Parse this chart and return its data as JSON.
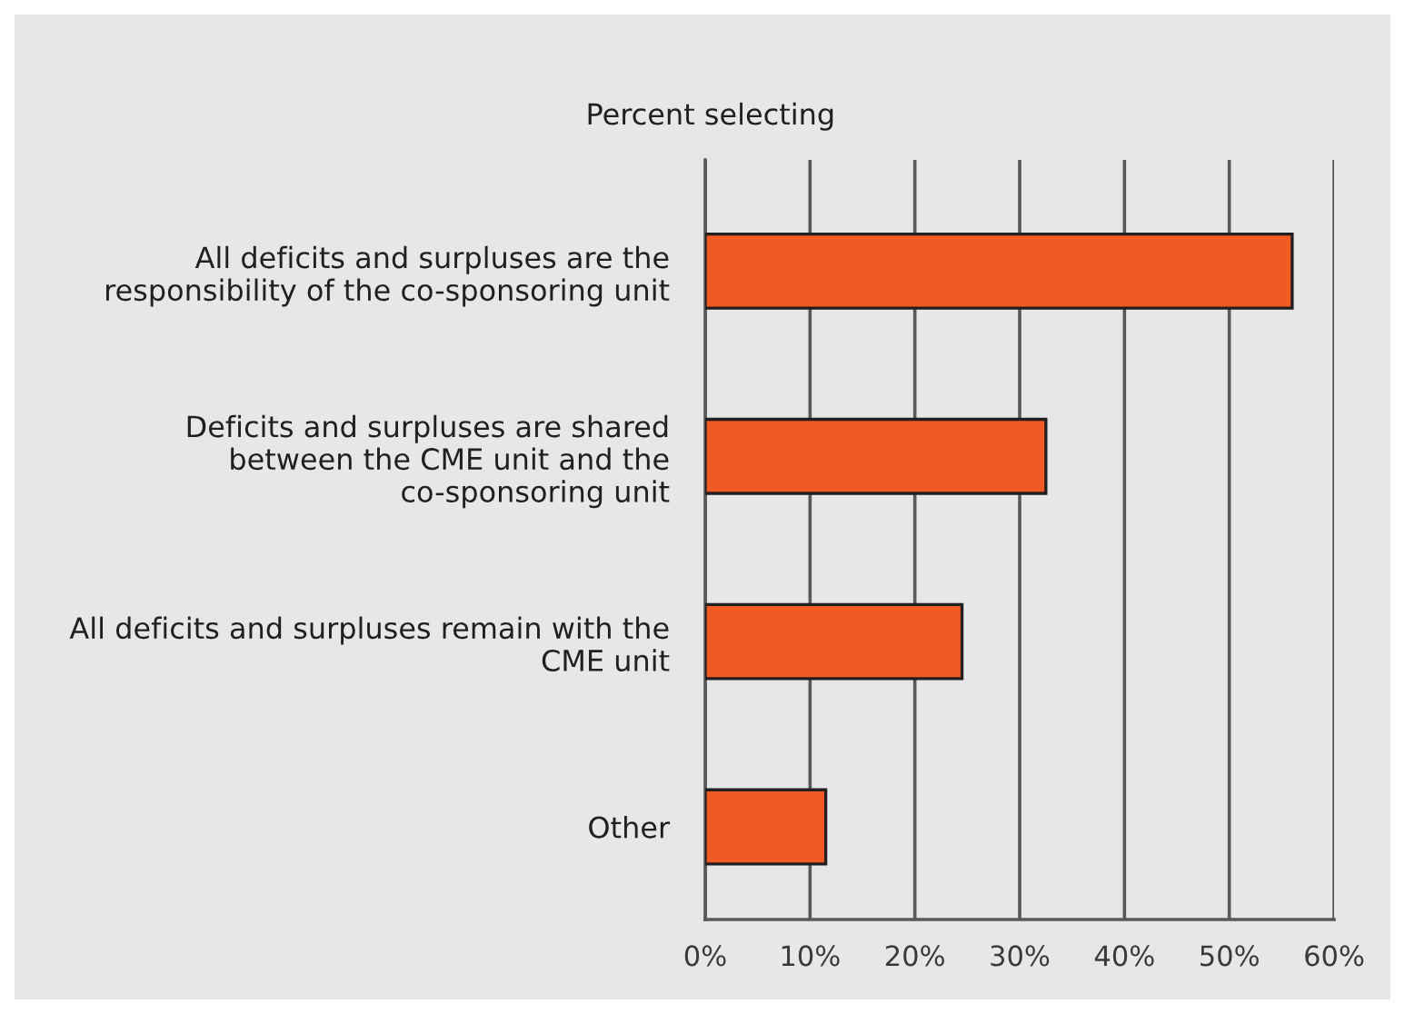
{
  "chart_data": {
    "type": "bar",
    "orientation": "horizontal",
    "title": "Percent selecting",
    "categories": [
      "All deficits and surpluses are the\nresponsibility of the co-sponsoring unit",
      "Deficits and surpluses are shared\nbetween the CME unit and the\nco-sponsoring unit",
      "All deficits and surpluses remain with the\nCME unit",
      "Other"
    ],
    "values": [
      56,
      32.5,
      24.5,
      11.5
    ],
    "color": "#f15a22",
    "xlim": [
      0,
      60
    ],
    "xticks": [
      {
        "value": 0,
        "label": "0%"
      },
      {
        "value": 10,
        "label": "10%"
      },
      {
        "value": 20,
        "label": "20%"
      },
      {
        "value": 30,
        "label": "30%"
      },
      {
        "value": 40,
        "label": "40%"
      },
      {
        "value": 50,
        "label": "50%"
      },
      {
        "value": 60,
        "label": "60%"
      }
    ],
    "grid": "x",
    "legend": false
  }
}
